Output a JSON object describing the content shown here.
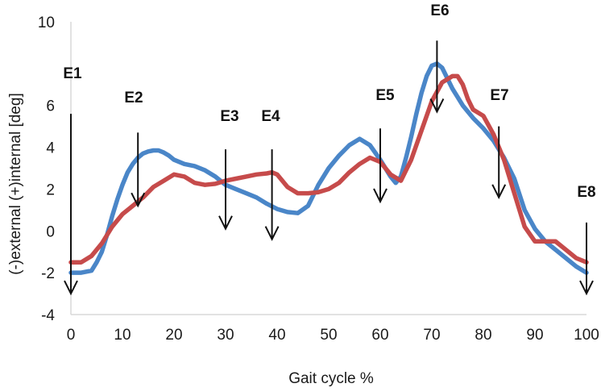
{
  "chart_data": {
    "type": "line",
    "title": "",
    "xlabel": "Gait cycle %",
    "ylabel": "(-)external (+)internal [deg]",
    "xlim": [
      0,
      100
    ],
    "ylim": [
      -4,
      10
    ],
    "x_ticks": [
      0,
      10,
      20,
      30,
      40,
      50,
      60,
      70,
      80,
      90,
      100
    ],
    "y_ticks": [
      -4,
      -2,
      0,
      2,
      4,
      6,
      10
    ],
    "grid": false,
    "legend": "none",
    "series": [
      {
        "color": "#4a86c8",
        "x": [
          0,
          2,
          4,
          5,
          6,
          7,
          8,
          9,
          10,
          11,
          12,
          13,
          14,
          15,
          16,
          17,
          18,
          19,
          20,
          22,
          24,
          26,
          28,
          30,
          32,
          34,
          36,
          38,
          40,
          42,
          44,
          46,
          48,
          50,
          52,
          54,
          56,
          58,
          60,
          62,
          63,
          64,
          65,
          66,
          67,
          68,
          69,
          70,
          71,
          72,
          73,
          74,
          75,
          76,
          77,
          78,
          80,
          82,
          84,
          86,
          88,
          90,
          92,
          94,
          96,
          98,
          100
        ],
        "values": [
          -2.0,
          -2.0,
          -1.9,
          -1.5,
          -1.0,
          -0.2,
          0.7,
          1.5,
          2.2,
          2.8,
          3.2,
          3.5,
          3.7,
          3.8,
          3.85,
          3.85,
          3.75,
          3.6,
          3.4,
          3.2,
          3.1,
          2.9,
          2.6,
          2.2,
          2.0,
          1.8,
          1.6,
          1.3,
          1.05,
          0.9,
          0.85,
          1.2,
          2.2,
          3.0,
          3.6,
          4.1,
          4.4,
          4.1,
          3.4,
          2.6,
          2.3,
          2.6,
          3.5,
          4.5,
          5.6,
          6.6,
          7.4,
          7.9,
          8.0,
          7.8,
          7.3,
          6.8,
          6.4,
          6.0,
          5.7,
          5.4,
          4.9,
          4.3,
          3.5,
          2.5,
          1.0,
          0.1,
          -0.5,
          -0.9,
          -1.3,
          -1.7,
          -2.0
        ]
      },
      {
        "color": "#c64b4b",
        "x": [
          0,
          2,
          4,
          6,
          8,
          10,
          12,
          14,
          16,
          18,
          20,
          22,
          24,
          26,
          28,
          30,
          32,
          34,
          36,
          38,
          39,
          40,
          42,
          44,
          46,
          48,
          50,
          52,
          54,
          56,
          58,
          60,
          62,
          64,
          66,
          68,
          70,
          72,
          74,
          75,
          76,
          77,
          78,
          80,
          82,
          84,
          86,
          88,
          90,
          92,
          94,
          96,
          98,
          100
        ],
        "values": [
          -1.5,
          -1.5,
          -1.2,
          -0.6,
          0.2,
          0.8,
          1.2,
          1.6,
          2.1,
          2.4,
          2.7,
          2.6,
          2.3,
          2.2,
          2.25,
          2.4,
          2.5,
          2.6,
          2.7,
          2.75,
          2.8,
          2.7,
          2.1,
          1.8,
          1.8,
          1.85,
          2.0,
          2.3,
          2.8,
          3.2,
          3.5,
          3.3,
          2.7,
          2.4,
          3.4,
          4.8,
          6.2,
          7.1,
          7.4,
          7.4,
          7.0,
          6.3,
          5.8,
          5.5,
          4.6,
          3.4,
          1.8,
          0.2,
          -0.5,
          -0.5,
          -0.5,
          -0.9,
          -1.3,
          -1.5
        ]
      }
    ],
    "events": [
      {
        "label": "E1",
        "x": 0,
        "y_top": 5.6,
        "y_bottom": -3.0
      },
      {
        "label": "E2",
        "x": 13,
        "y_top": 4.7,
        "y_bottom": 1.2
      },
      {
        "label": "E3",
        "x": 30,
        "y_top": 3.9,
        "y_bottom": 0.1
      },
      {
        "label": "E4",
        "x": 39,
        "y_top": 3.9,
        "y_bottom": -0.4
      },
      {
        "label": "E5",
        "x": 60,
        "y_top": 4.9,
        "y_bottom": 1.4
      },
      {
        "label": "E6",
        "x": 71,
        "y_top": 9.1,
        "y_bottom": 5.7
      },
      {
        "label": "E7",
        "x": 83,
        "y_top": 5.0,
        "y_bottom": 1.6
      },
      {
        "label": "E8",
        "x": 100,
        "y_top": 0.4,
        "y_bottom": -3.0
      }
    ]
  }
}
